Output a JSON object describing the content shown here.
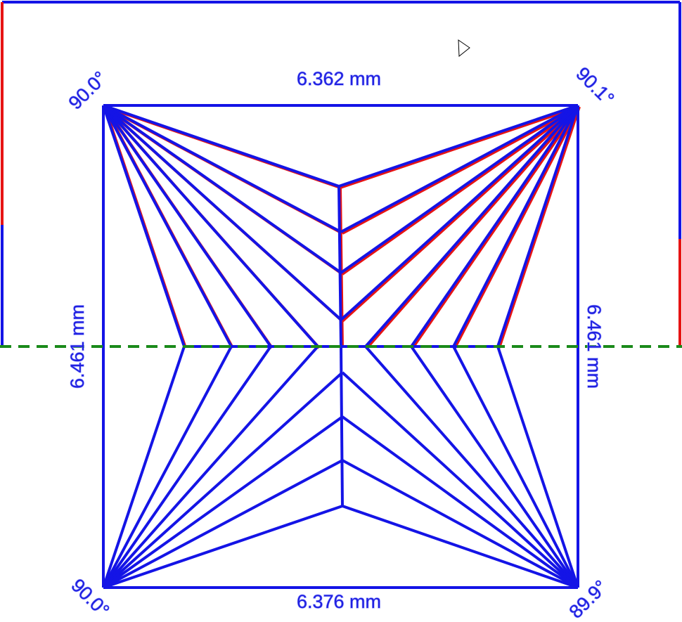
{
  "measurements": {
    "top": "6.362 mm",
    "bottom": "6.376 mm",
    "left": "6.461 mm",
    "right": "6.461 mm"
  },
  "angles": {
    "top_left": "90.0°",
    "top_right": "90.1°",
    "bottom_left": "90.0°",
    "bottom_right": "89.9°"
  }
}
